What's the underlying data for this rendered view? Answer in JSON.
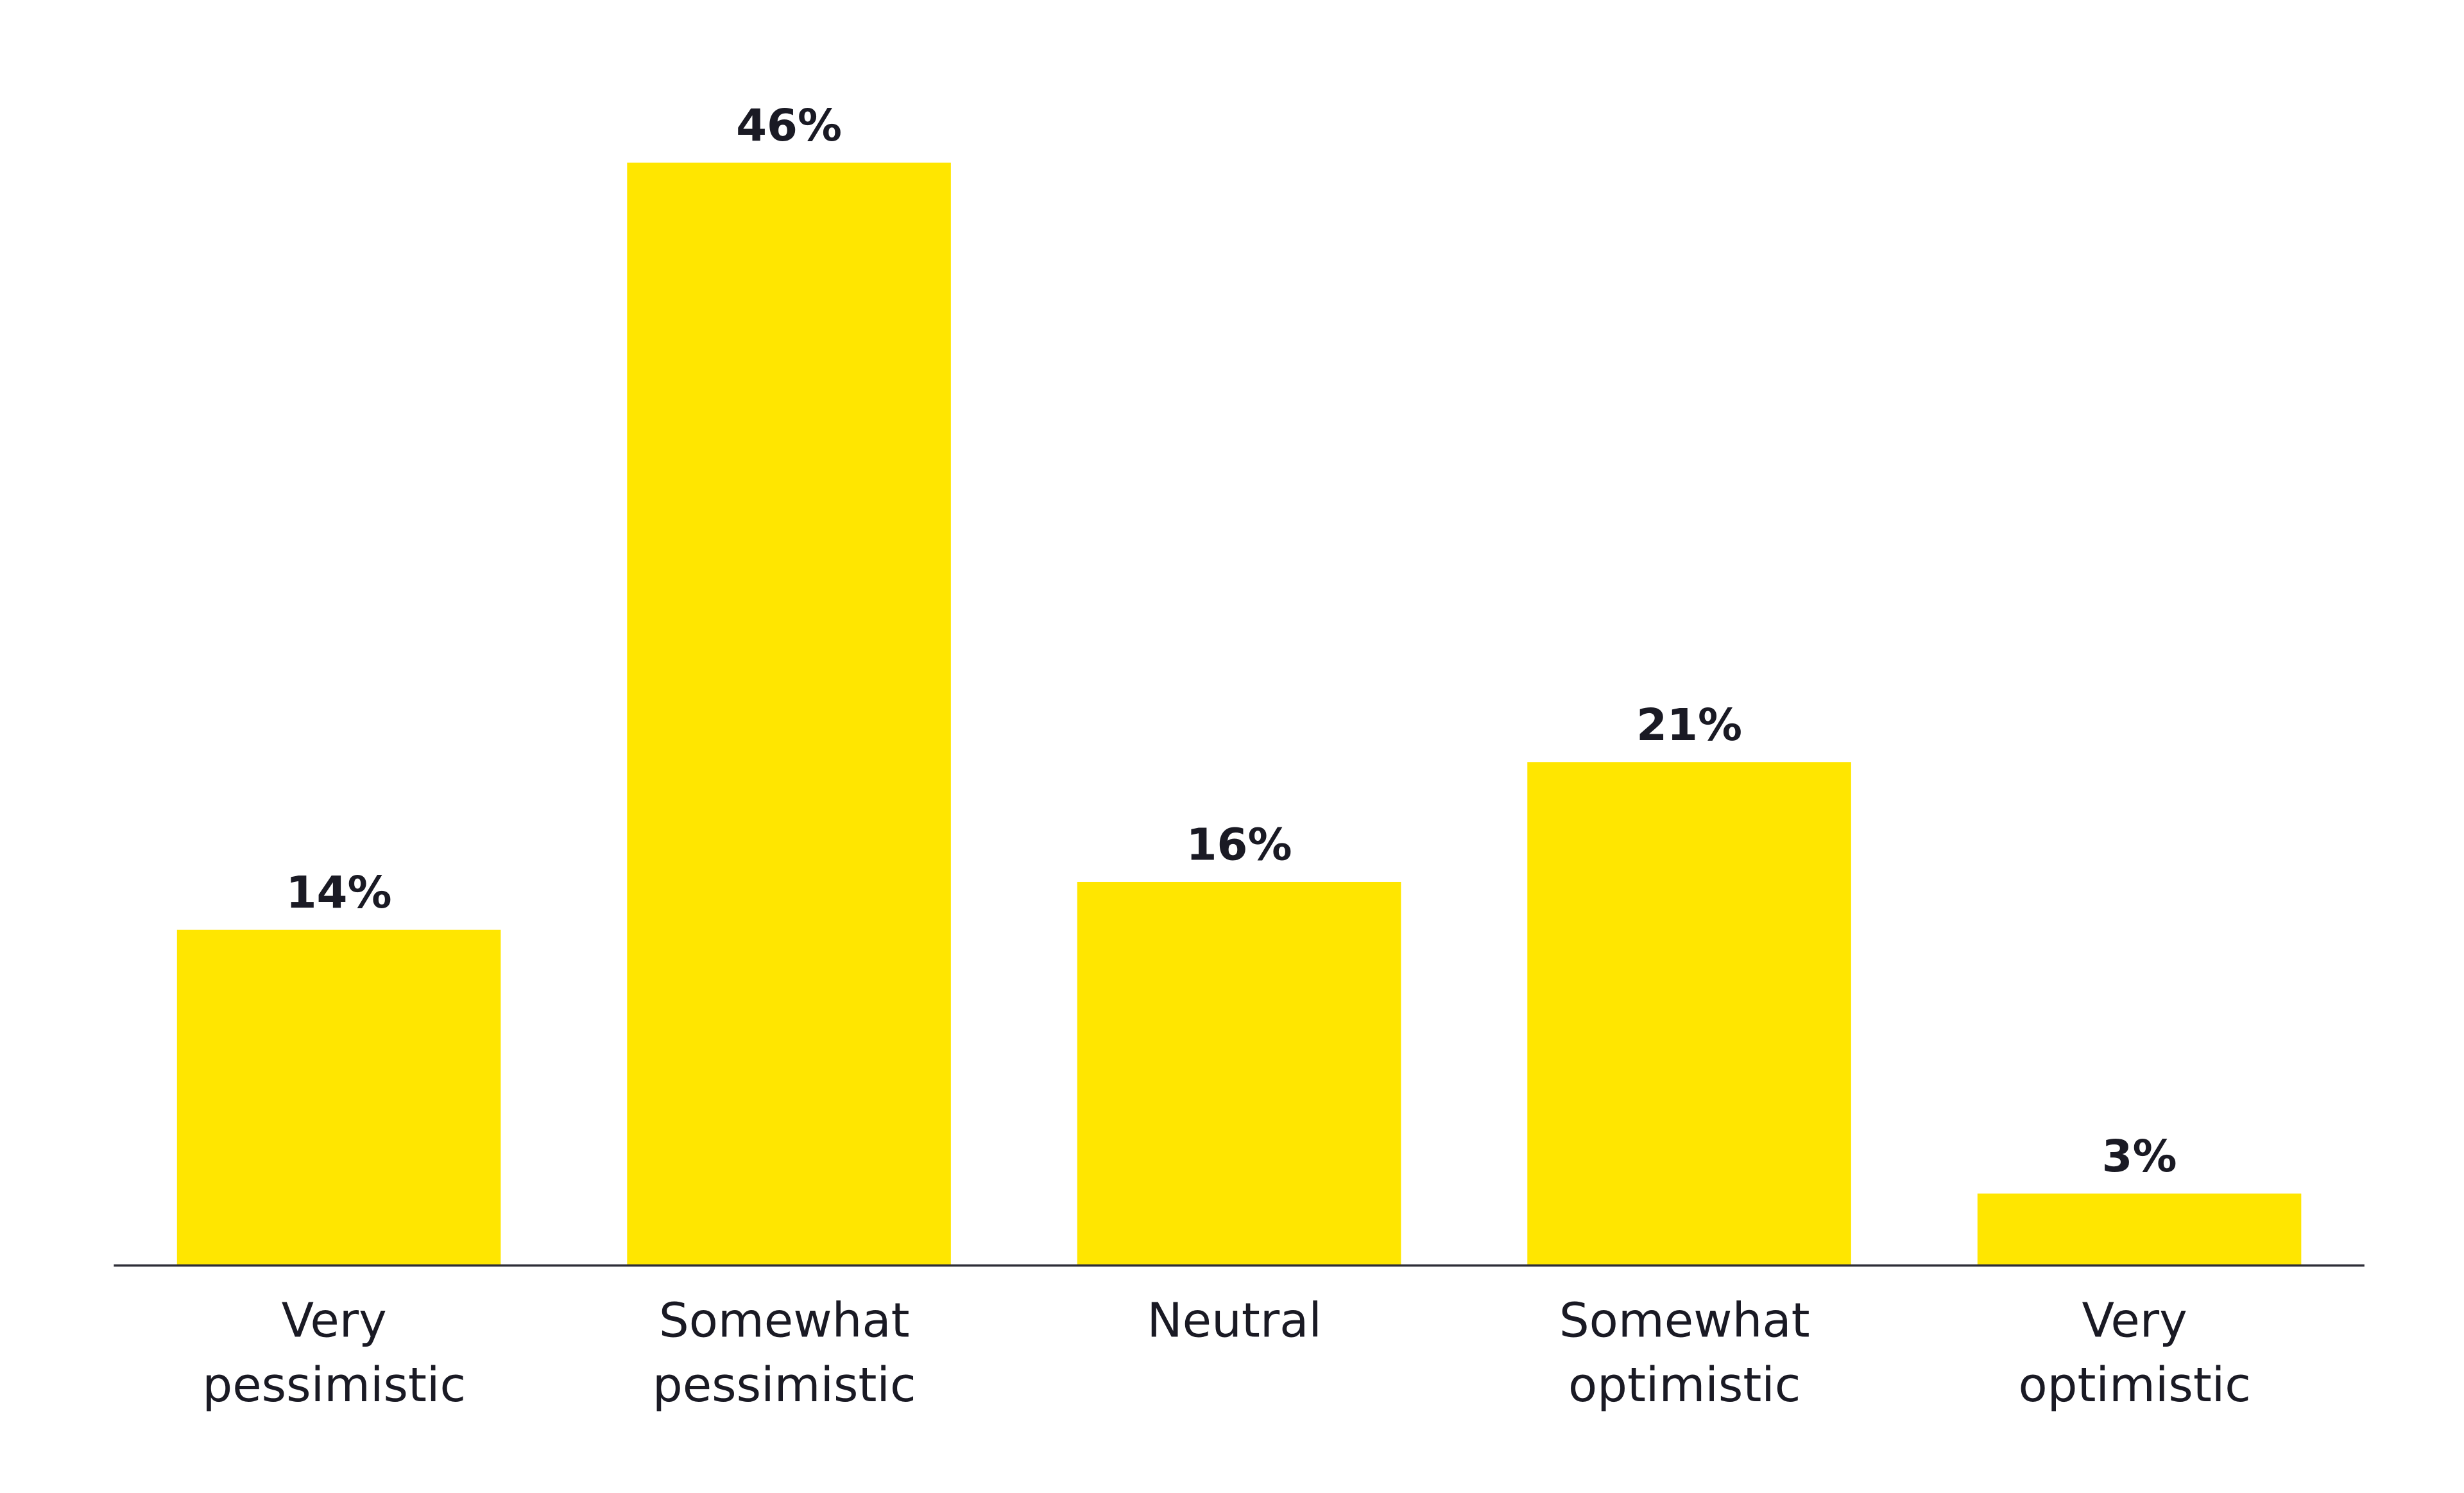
{
  "chart_data": {
    "type": "bar",
    "title": "",
    "xlabel": "",
    "ylabel": "",
    "categories": [
      [
        "Very",
        "pessimistic"
      ],
      [
        "Somewhat",
        "pessimistic"
      ],
      [
        "Neutral"
      ],
      [
        "Somewhat",
        "optimistic"
      ],
      [
        "Very",
        "optimistic"
      ]
    ],
    "values": [
      14,
      46,
      16,
      21,
      3
    ],
    "value_labels": [
      "14%",
      "46%",
      "16%",
      "21%",
      "3%"
    ],
    "unit": "%",
    "ylim": [
      0,
      46
    ],
    "grid": false,
    "legend": "none",
    "colors": {
      "bar": "#FFE600",
      "text": "#1A1A24",
      "axis": "#2E2E38"
    }
  }
}
